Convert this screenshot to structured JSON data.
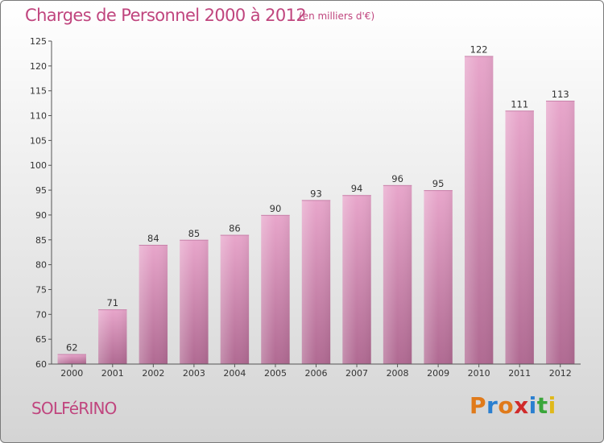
{
  "chart_data": {
    "type": "bar",
    "title": "Charges de Personnel 2000 à 2012",
    "subtitle": "(en milliers d'€)",
    "categories": [
      "2000",
      "2001",
      "2002",
      "2003",
      "2004",
      "2005",
      "2006",
      "2007",
      "2008",
      "2009",
      "2010",
      "2011",
      "2012"
    ],
    "values": [
      62,
      71,
      84,
      85,
      86,
      90,
      93,
      94,
      96,
      95,
      122,
      111,
      113
    ],
    "ylim": [
      60,
      125
    ],
    "yticks": [
      60,
      65,
      70,
      75,
      80,
      85,
      90,
      95,
      100,
      105,
      110,
      115,
      120,
      125
    ],
    "xlabel": "",
    "ylabel": "",
    "grid": false,
    "bar_color": "#d990b8"
  },
  "footer": {
    "town": "SOLFéRINO",
    "brand_letters": [
      {
        "ch": "P",
        "color": "#e07a1a"
      },
      {
        "ch": "r",
        "color": "#2a7fd0"
      },
      {
        "ch": "o",
        "color": "#e07a1a"
      },
      {
        "ch": "x",
        "color": "#d02a2a"
      },
      {
        "ch": "i",
        "color": "#2a7fd0"
      },
      {
        "ch": "t",
        "color": "#3aa63a"
      },
      {
        "ch": "i",
        "color": "#e0b81a"
      }
    ]
  }
}
